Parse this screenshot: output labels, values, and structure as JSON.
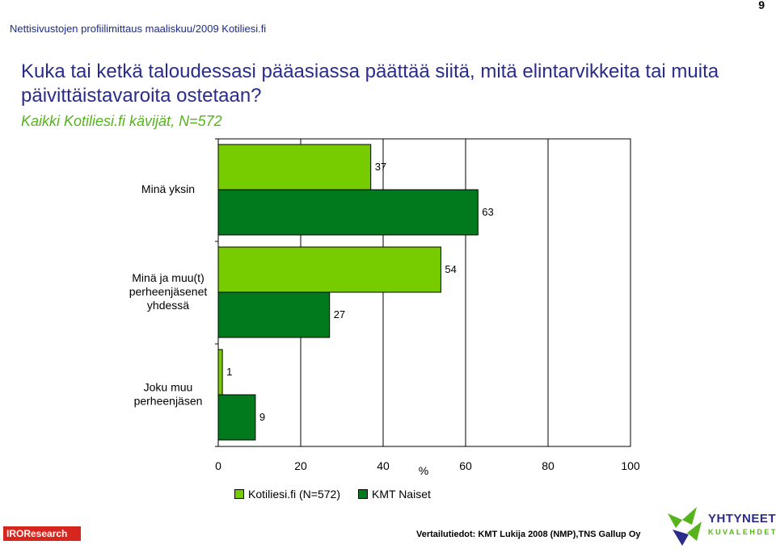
{
  "page": {
    "number": "9",
    "header": "Nettisivustojen profiilimittaus  maaliskuu/2009  Kotiliesi.fi",
    "title": "Kuka tai ketkä taloudessasi pääasiassa päättää siitä, mitä elintarvikkeita tai muita päivittäistavaroita ostetaan?",
    "subtitle": "Kaikki Kotiliesi.fi kävijät, N=572"
  },
  "footer": {
    "left_logo": "IROResearch",
    "source": "Vertailutiedot: KMT Lukija 2008 (NMP),TNS Gallup Oy",
    "right_logo_top": "YHTYNEET",
    "right_logo_bottom": "KUVALEHDET"
  },
  "colors": {
    "title": "#2a2c8c",
    "subtitle": "#55b31c",
    "series_light": "#77cc00",
    "series_dark": "#007a1c",
    "logo_red": "#d7261e"
  },
  "chart_data": {
    "type": "bar",
    "orientation": "horizontal",
    "categories": [
      "Minä yksin",
      "Minä ja muu(t) perheenjäsenet yhdessä",
      "Joku muu perheenjäsen"
    ],
    "category_lines": [
      [
        "Minä yksin"
      ],
      [
        "Minä ja muu(t)",
        "perheenjäsenet",
        "yhdessä"
      ],
      [
        "Joku muu",
        "perheenjäsen"
      ]
    ],
    "series": [
      {
        "name": "Kotiliesi.fi (N=572)",
        "values": [
          37,
          54,
          1
        ],
        "color": "#77cc00"
      },
      {
        "name": "KMT Naiset",
        "values": [
          63,
          27,
          9
        ],
        "color": "#007a1c"
      }
    ],
    "xlabel": "%",
    "xlim": [
      0,
      100
    ],
    "xticks": [
      0,
      20,
      40,
      60,
      80,
      100
    ],
    "grid": true,
    "legend_position": "bottom"
  }
}
